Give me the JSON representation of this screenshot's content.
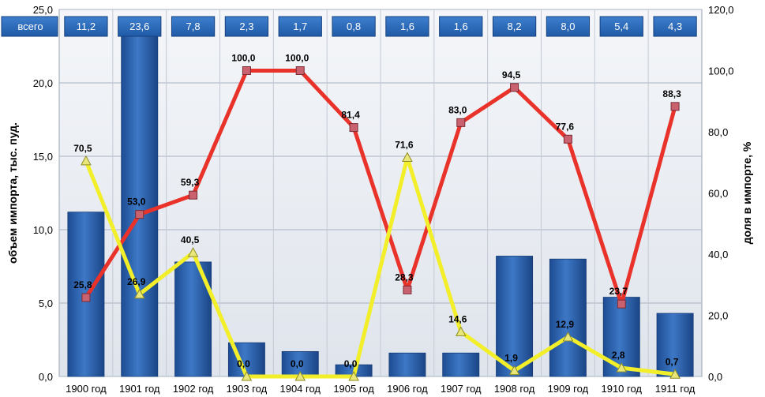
{
  "chart_data": {
    "type": "bar",
    "categories": [
      "1900 год",
      "1901 год",
      "1902 год",
      "1903 год",
      "1904 год",
      "1905 год",
      "1906 год",
      "1907 год",
      "1908 год",
      "1909 год",
      "1910 год",
      "1911 год"
    ],
    "totals_label": "всего",
    "totals": [
      "11,2",
      "23,6",
      "7,8",
      "2,3",
      "1,7",
      "0,8",
      "1,6",
      "1,6",
      "8,2",
      "8,0",
      "5,4",
      "4,3"
    ],
    "series": [
      {
        "type": "bar",
        "axis": "left",
        "values": [
          11.2,
          23.6,
          7.8,
          2.3,
          1.7,
          0.8,
          1.6,
          1.6,
          8.2,
          8.0,
          5.4,
          4.3
        ],
        "color": "#2a5ea8"
      },
      {
        "type": "line",
        "axis": "right",
        "values": [
          25.8,
          53.0,
          59.3,
          100.0,
          100.0,
          81.4,
          28.3,
          83.0,
          94.5,
          77.6,
          23.7,
          88.3
        ],
        "labels": [
          "25,8",
          "53,0",
          "59,3",
          "100,0",
          "100,0",
          "81,4",
          "28,3",
          "83,0",
          "94,5",
          "77,6",
          "23,7",
          "88,3"
        ],
        "color": "#e8322a",
        "marker": "square"
      },
      {
        "type": "line",
        "axis": "right",
        "values": [
          70.5,
          26.9,
          40.5,
          0.0,
          0.0,
          0.0,
          71.6,
          14.6,
          1.9,
          12.9,
          2.8,
          0.7
        ],
        "labels": [
          "70,5",
          "26,9",
          "40,5",
          "0,0",
          "0,0",
          "0,0",
          "71,6",
          "14,6",
          "1,9",
          "12,9",
          "2,8",
          "0,7"
        ],
        "color": "#f2ef2a",
        "marker": "triangle"
      }
    ],
    "ylabel": "объем импорта, тыс. пуд.",
    "y2label": "доля в импорте, %",
    "ylim": [
      0,
      25
    ],
    "y2lim": [
      0,
      120
    ],
    "yticks": [
      "0,0",
      "5,0",
      "10,0",
      "15,0",
      "20,0",
      "25,0"
    ],
    "y2ticks": [
      "0,0",
      "20,0",
      "40,0",
      "60,0",
      "80,0",
      "100,0",
      "120,0"
    ],
    "grid": true
  }
}
